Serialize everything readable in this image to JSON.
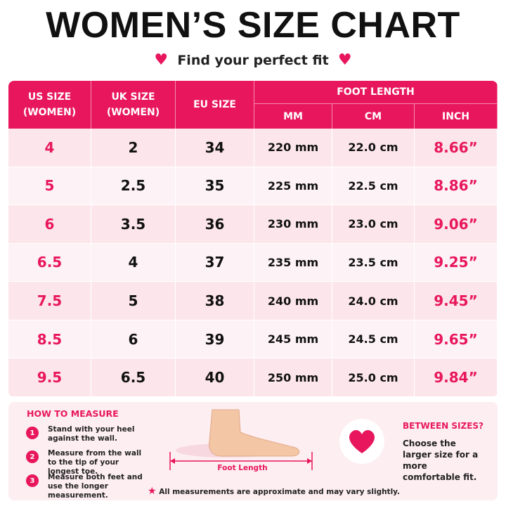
{
  "header": {
    "title": "WOMEN’S SIZE CHART",
    "subtitle": "Find your perfect fit"
  },
  "table": {
    "headers": [
      "US SIZE (WOMEN)",
      "UK SIZE (WOMEN)",
      "EU SIZE"
    ],
    "group": "FOOT LENGTH",
    "subheaders": [
      "MM",
      "CM",
      "INCH"
    ],
    "rows": [
      [
        "4",
        "2",
        "34",
        "220 mm",
        "22.0 cm",
        "8.66”"
      ],
      [
        "5",
        "2.5",
        "35",
        "225 mm",
        "22.5 cm",
        "8.86”"
      ],
      [
        "6",
        "3.5",
        "36",
        "230 mm",
        "23.0 cm",
        "9.06”"
      ],
      [
        "6.5",
        "4",
        "37",
        "235 mm",
        "23.5 cm",
        "9.25”"
      ],
      [
        "7.5",
        "5",
        "38",
        "240 mm",
        "24.0 cm",
        "9.45”"
      ],
      [
        "8.5",
        "6",
        "39",
        "245 mm",
        "24.5 cm",
        "9.65”"
      ],
      [
        "9.5",
        "6.5",
        "40",
        "250 mm",
        "25.0 cm",
        "9.84”"
      ]
    ]
  },
  "measure": {
    "title": "HOW TO MEASURE",
    "steps": [
      {
        "number": "1",
        "text": "Stand with your heel against the wall."
      },
      {
        "number": "2",
        "text": "Measure from the wall to the tip of your longest toe."
      },
      {
        "number": "3",
        "text": "Measure both feet and use the longer measurement."
      }
    ]
  },
  "illustration": {
    "label": "Foot Length"
  },
  "between": {
    "title": "BETWEEN SIZES?",
    "text": "Choose the larger size for a more comfortable fit."
  },
  "footnote": "All measurements are approximate and may vary slightly."
}
